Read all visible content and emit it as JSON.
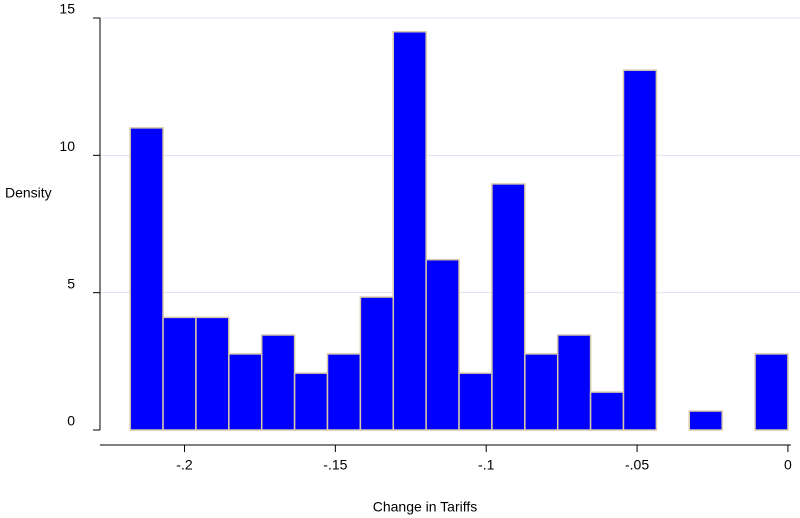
{
  "chart_data": {
    "type": "histogram",
    "xlabel": "Change in Tariffs",
    "ylabel": "Density",
    "bins": [
      -0.218,
      -0.2071,
      -0.1962,
      -0.1853,
      -0.1744,
      -0.1635,
      -0.1526,
      -0.1417,
      -0.1308,
      -0.1199,
      -0.109,
      -0.0981,
      -0.0872,
      -0.0763,
      -0.0654,
      -0.0545,
      -0.0436,
      -0.0327,
      -0.0218,
      -0.0109,
      0
    ],
    "values": [
      11.0,
      4.1,
      4.1,
      2.77,
      3.46,
      2.07,
      2.77,
      4.84,
      14.5,
      6.2,
      2.07,
      8.96,
      2.77,
      3.46,
      1.38,
      13.1,
      0,
      0.69,
      0,
      2.77
    ],
    "color": "#0000ff",
    "edge_color": "#d8c8a8",
    "xlim": [
      -0.228,
      0.004
    ],
    "ylim": [
      0,
      15
    ],
    "xticks": [
      {
        "value": -0.2,
        "label": "-.2"
      },
      {
        "value": -0.15,
        "label": "-.15"
      },
      {
        "value": -0.1,
        "label": "-.1"
      },
      {
        "value": -0.05,
        "label": "-.05"
      },
      0
    ],
    "yticks": [
      0,
      5,
      10,
      15
    ],
    "grid": true
  }
}
